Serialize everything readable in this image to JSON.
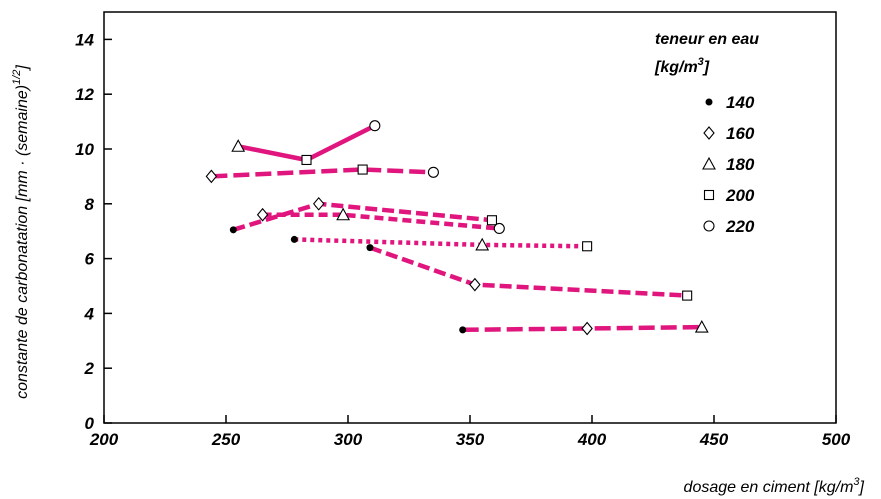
{
  "chart_data": {
    "type": "line",
    "xlabel": "dosage en ciment [kg/m",
    "xlabel_sup": "3",
    "xlabel_end": "]",
    "ylabel": "constante de carbonatation [mm · (semaine)",
    "ylabel_sup": "1/2",
    "ylabel_end": "]",
    "xlim": [
      200,
      500
    ],
    "ylim": [
      0,
      15
    ],
    "x_ticks": [
      "200",
      "250",
      "300",
      "350",
      "400",
      "450",
      "500"
    ],
    "y_ticks": [
      "0",
      "2",
      "4",
      "6",
      "8",
      "10",
      "12",
      "14"
    ],
    "grid": false,
    "line_color": "#e0157e",
    "legend": {
      "title_line1": "teneur en eau",
      "title_line2": "[kg/m",
      "title_line2_sup": "3",
      "title_line2_end": "]",
      "entries": [
        {
          "label": "140",
          "marker": "dot"
        },
        {
          "label": "160",
          "marker": "diamond"
        },
        {
          "label": "180",
          "marker": "triangle"
        },
        {
          "label": "200",
          "marker": "square"
        },
        {
          "label": "220",
          "marker": "circle"
        }
      ]
    },
    "series": [
      {
        "style": "solid",
        "points": [
          {
            "x": 255,
            "y": 10.1,
            "m": "triangle"
          },
          {
            "x": 283,
            "y": 9.6,
            "m": "square"
          },
          {
            "x": 311,
            "y": 10.85,
            "m": "circle"
          }
        ]
      },
      {
        "style": "longdash",
        "points": [
          {
            "x": 244,
            "y": 9.0,
            "m": "diamond"
          },
          {
            "x": 306,
            "y": 9.25,
            "m": "square"
          },
          {
            "x": 335,
            "y": 9.15,
            "m": "circle"
          }
        ]
      },
      {
        "style": "dash",
        "points": [
          {
            "x": 253,
            "y": 7.05,
            "m": "dot"
          },
          {
            "x": 288,
            "y": 8.0,
            "m": "diamond"
          },
          {
            "x": 359,
            "y": 7.4,
            "m": "square"
          }
        ]
      },
      {
        "style": "shortdash",
        "points": [
          {
            "x": 265,
            "y": 7.6,
            "m": "diamond"
          },
          {
            "x": 298,
            "y": 7.6,
            "m": "triangle"
          },
          {
            "x": 362,
            "y": 7.1,
            "m": "circle"
          }
        ]
      },
      {
        "style": "dotted",
        "points": [
          {
            "x": 278,
            "y": 6.7,
            "m": "dot"
          },
          {
            "x": 355,
            "y": 6.5,
            "m": "triangle"
          },
          {
            "x": 398,
            "y": 6.45,
            "m": "square"
          }
        ]
      },
      {
        "style": "dash",
        "points": [
          {
            "x": 309,
            "y": 6.4,
            "m": "dot"
          },
          {
            "x": 352,
            "y": 5.05,
            "m": "diamond"
          },
          {
            "x": 439,
            "y": 4.65,
            "m": "square"
          }
        ]
      },
      {
        "style": "longdash",
        "points": [
          {
            "x": 347,
            "y": 3.4,
            "m": "dot"
          },
          {
            "x": 398,
            "y": 3.45,
            "m": "diamond"
          },
          {
            "x": 445,
            "y": 3.5,
            "m": "triangle"
          }
        ]
      }
    ]
  }
}
